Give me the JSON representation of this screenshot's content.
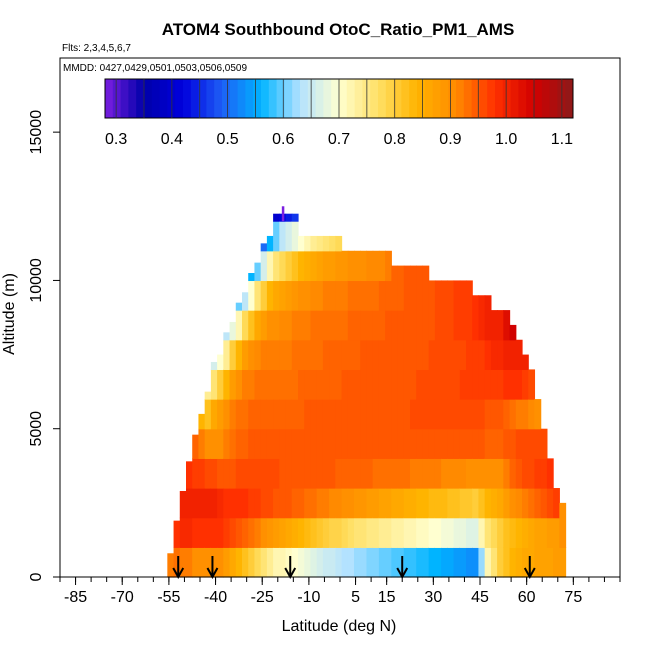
{
  "chart_data": {
    "type": "heatmap",
    "title": "ATOM4 Southbound OtoC_Ratio_PM1_AMS",
    "subtitle": "Flts: 2,3,4,5,6,7",
    "annotation": "MMDD: 0427,0429,0501,0503,0506,0509",
    "xlabel": "Latitude (deg N)",
    "ylabel": "Altitude (m)",
    "xlim": [
      -90,
      90
    ],
    "ylim": [
      0,
      17500
    ],
    "x_ticks": [
      -85,
      -70,
      -55,
      -40,
      -25,
      -10,
      5,
      15,
      30,
      45,
      60,
      75
    ],
    "x_ticklabels": [
      "-85",
      "-70",
      "-55",
      "-40",
      "-25",
      "-10",
      "5",
      "15",
      "30",
      "45",
      "60",
      "75"
    ],
    "x_minor_step": 5,
    "y_ticks": [
      0,
      5000,
      10000,
      15000
    ],
    "y_ticklabels": [
      "0",
      "5000",
      "10000",
      "15000"
    ],
    "colorbar": {
      "ticks": [
        0.3,
        0.4,
        0.5,
        0.6,
        0.7,
        0.8,
        0.9,
        1.0,
        1.1
      ],
      "ticklabels": [
        "0.3",
        "0.4",
        "0.5",
        "0.6",
        "0.7",
        "0.8",
        "0.9",
        "1.0",
        "1.1"
      ],
      "range": [
        0.28,
        1.12
      ],
      "colors": [
        "#7b1fe0",
        "#0000aa",
        "#0000dd",
        "#1e5ef5",
        "#00b4ff",
        "#b3e2ff",
        "#ffffd0",
        "#ffe066",
        "#ffb400",
        "#ff8a00",
        "#ff3000",
        "#d10000",
        "#8c1a1a"
      ]
    },
    "profile_arrows_lat": [
      -52,
      -41,
      -16,
      20,
      61
    ],
    "columns": [
      {
        "lat": -54.5,
        "top": 800,
        "values": [
          0.92
        ]
      },
      {
        "lat": -52.5,
        "top": 1900,
        "values": [
          0.93,
          0.98
        ]
      },
      {
        "lat": -50.5,
        "top": 2900,
        "values": [
          0.92,
          0.99,
          1.0
        ]
      },
      {
        "lat": -48.5,
        "top": 3900,
        "values": [
          0.92,
          0.99,
          1.0,
          0.98
        ]
      },
      {
        "lat": -46.5,
        "top": 4800,
        "values": [
          0.9,
          0.98,
          1.0,
          0.97,
          0.94
        ]
      },
      {
        "lat": -44.5,
        "top": 5500,
        "values": [
          0.9,
          0.98,
          1.0,
          0.97,
          0.92,
          0.84
        ]
      },
      {
        "lat": -42.5,
        "top": 6200,
        "values": [
          0.9,
          0.98,
          1.0,
          0.96,
          0.9,
          0.82,
          0.74
        ]
      },
      {
        "lat": -40.5,
        "top": 6900,
        "values": [
          0.9,
          0.98,
          1.0,
          0.96,
          0.9,
          0.86,
          0.76,
          0.66
        ]
      },
      {
        "lat": -38.5,
        "top": 7500,
        "values": [
          0.9,
          0.98,
          0.99,
          0.95,
          0.9,
          0.88,
          0.8,
          0.7
        ]
      },
      {
        "lat": -36.5,
        "top": 8000,
        "values": [
          0.88,
          0.97,
          0.98,
          0.95,
          0.92,
          0.9,
          0.84,
          0.74,
          0.64
        ]
      },
      {
        "lat": -34.5,
        "top": 8600,
        "values": [
          0.86,
          0.96,
          0.98,
          0.95,
          0.93,
          0.92,
          0.88,
          0.8,
          0.68
        ]
      },
      {
        "lat": -32.5,
        "top": 9100,
        "values": [
          0.84,
          0.95,
          0.98,
          0.96,
          0.94,
          0.93,
          0.9,
          0.84,
          0.72,
          0.6
        ]
      },
      {
        "lat": -30.5,
        "top": 9600,
        "values": [
          0.82,
          0.94,
          0.98,
          0.96,
          0.94,
          0.93,
          0.92,
          0.88,
          0.78,
          0.64
        ]
      },
      {
        "lat": -28.5,
        "top": 10100,
        "values": [
          0.8,
          0.93,
          0.97,
          0.96,
          0.95,
          0.94,
          0.92,
          0.9,
          0.82,
          0.7,
          0.56
        ]
      },
      {
        "lat": -26.5,
        "top": 10600,
        "values": [
          0.78,
          0.92,
          0.97,
          0.96,
          0.95,
          0.94,
          0.93,
          0.91,
          0.86,
          0.76,
          0.6
        ]
      },
      {
        "lat": -24.5,
        "top": 11100,
        "values": [
          0.76,
          0.9,
          0.96,
          0.96,
          0.95,
          0.94,
          0.93,
          0.92,
          0.88,
          0.8,
          0.66,
          0.5
        ]
      },
      {
        "lat": -22.5,
        "top": 11500,
        "values": [
          0.74,
          0.89,
          0.96,
          0.96,
          0.95,
          0.94,
          0.93,
          0.92,
          0.9,
          0.84,
          0.72,
          0.56
        ]
      },
      {
        "lat": -20.5,
        "top": 12000,
        "values": [
          0.72,
          0.88,
          0.95,
          0.96,
          0.95,
          0.94,
          0.93,
          0.92,
          0.9,
          0.86,
          0.76,
          0.6,
          0.4
        ]
      },
      {
        "lat": -18.5,
        "top": 12000,
        "values": [
          0.72,
          0.87,
          0.95,
          0.95,
          0.95,
          0.94,
          0.93,
          0.92,
          0.91,
          0.87,
          0.78,
          0.64,
          0.42
        ]
      },
      {
        "lat": -16.5,
        "top": 12000,
        "values": [
          0.71,
          0.86,
          0.95,
          0.95,
          0.95,
          0.94,
          0.93,
          0.92,
          0.91,
          0.88,
          0.8,
          0.66,
          0.44
        ]
      },
      {
        "lat": -14.5,
        "top": 12000,
        "values": [
          0.7,
          0.85,
          0.94,
          0.95,
          0.95,
          0.94,
          0.93,
          0.93,
          0.92,
          0.89,
          0.82,
          0.68,
          0.46
        ]
      },
      {
        "lat": -12.5,
        "top": 11500,
        "values": [
          0.69,
          0.84,
          0.94,
          0.95,
          0.95,
          0.94,
          0.94,
          0.93,
          0.92,
          0.9,
          0.84,
          0.7
        ]
      },
      {
        "lat": -10.5,
        "top": 11500,
        "values": [
          0.68,
          0.83,
          0.93,
          0.95,
          0.95,
          0.95,
          0.94,
          0.93,
          0.92,
          0.9,
          0.85,
          0.72
        ]
      },
      {
        "lat": -8.5,
        "top": 11500,
        "values": [
          0.67,
          0.82,
          0.93,
          0.95,
          0.95,
          0.95,
          0.94,
          0.93,
          0.93,
          0.91,
          0.86,
          0.74
        ]
      },
      {
        "lat": -6.5,
        "top": 11500,
        "values": [
          0.66,
          0.81,
          0.92,
          0.95,
          0.95,
          0.95,
          0.94,
          0.93,
          0.93,
          0.91,
          0.87,
          0.75
        ]
      },
      {
        "lat": -4.5,
        "top": 11500,
        "values": [
          0.65,
          0.8,
          0.92,
          0.95,
          0.95,
          0.95,
          0.94,
          0.94,
          0.93,
          0.92,
          0.88,
          0.76
        ]
      },
      {
        "lat": -2.5,
        "top": 11500,
        "values": [
          0.65,
          0.79,
          0.91,
          0.95,
          0.95,
          0.95,
          0.94,
          0.94,
          0.93,
          0.92,
          0.88,
          0.77
        ]
      },
      {
        "lat": -0.5,
        "top": 11500,
        "values": [
          0.64,
          0.79,
          0.91,
          0.94,
          0.95,
          0.95,
          0.94,
          0.94,
          0.93,
          0.92,
          0.89,
          0.78
        ]
      },
      {
        "lat": 1.5,
        "top": 11000,
        "values": [
          0.63,
          0.78,
          0.9,
          0.94,
          0.95,
          0.95,
          0.95,
          0.94,
          0.93,
          0.92,
          0.89
        ]
      },
      {
        "lat": 3.5,
        "top": 11000,
        "values": [
          0.63,
          0.77,
          0.9,
          0.94,
          0.95,
          0.95,
          0.95,
          0.94,
          0.94,
          0.93,
          0.9
        ]
      },
      {
        "lat": 5.5,
        "top": 11000,
        "values": [
          0.62,
          0.76,
          0.89,
          0.94,
          0.95,
          0.95,
          0.95,
          0.94,
          0.94,
          0.93,
          0.9
        ]
      },
      {
        "lat": 7.5,
        "top": 11000,
        "values": [
          0.62,
          0.76,
          0.89,
          0.94,
          0.95,
          0.95,
          0.95,
          0.95,
          0.94,
          0.93,
          0.9
        ]
      },
      {
        "lat": 9.5,
        "top": 11000,
        "values": [
          0.61,
          0.75,
          0.88,
          0.94,
          0.95,
          0.95,
          0.95,
          0.95,
          0.94,
          0.93,
          0.91
        ]
      },
      {
        "lat": 11.5,
        "top": 11000,
        "values": [
          0.61,
          0.75,
          0.88,
          0.93,
          0.95,
          0.95,
          0.95,
          0.95,
          0.94,
          0.93,
          0.91
        ]
      },
      {
        "lat": 13.5,
        "top": 11000,
        "values": [
          0.6,
          0.74,
          0.87,
          0.93,
          0.95,
          0.95,
          0.95,
          0.95,
          0.94,
          0.94,
          0.91
        ]
      },
      {
        "lat": 15.5,
        "top": 11000,
        "values": [
          0.6,
          0.74,
          0.87,
          0.93,
          0.95,
          0.95,
          0.95,
          0.95,
          0.95,
          0.94,
          0.92
        ]
      },
      {
        "lat": 17.5,
        "top": 10500,
        "values": [
          0.59,
          0.73,
          0.86,
          0.93,
          0.95,
          0.95,
          0.95,
          0.95,
          0.95,
          0.94
        ]
      },
      {
        "lat": 19.5,
        "top": 10500,
        "values": [
          0.59,
          0.73,
          0.86,
          0.93,
          0.95,
          0.95,
          0.95,
          0.95,
          0.95,
          0.94
        ]
      },
      {
        "lat": 21.5,
        "top": 10500,
        "values": [
          0.58,
          0.72,
          0.85,
          0.93,
          0.95,
          0.95,
          0.95,
          0.95,
          0.95,
          0.95
        ]
      },
      {
        "lat": 23.5,
        "top": 10500,
        "values": [
          0.58,
          0.72,
          0.85,
          0.92,
          0.95,
          0.96,
          0.95,
          0.95,
          0.95,
          0.95
        ]
      },
      {
        "lat": 25.5,
        "top": 10500,
        "values": [
          0.57,
          0.71,
          0.84,
          0.92,
          0.95,
          0.96,
          0.96,
          0.95,
          0.95,
          0.95
        ]
      },
      {
        "lat": 27.5,
        "top": 10500,
        "values": [
          0.57,
          0.71,
          0.84,
          0.92,
          0.95,
          0.96,
          0.96,
          0.95,
          0.95,
          0.95
        ]
      },
      {
        "lat": 29.5,
        "top": 10000,
        "values": [
          0.56,
          0.7,
          0.83,
          0.92,
          0.95,
          0.96,
          0.96,
          0.96,
          0.95
        ]
      },
      {
        "lat": 31.5,
        "top": 10000,
        "values": [
          0.56,
          0.7,
          0.83,
          0.92,
          0.95,
          0.96,
          0.96,
          0.96,
          0.96
        ]
      },
      {
        "lat": 33.5,
        "top": 10000,
        "values": [
          0.55,
          0.69,
          0.83,
          0.91,
          0.95,
          0.96,
          0.96,
          0.96,
          0.96
        ]
      },
      {
        "lat": 35.5,
        "top": 10000,
        "values": [
          0.55,
          0.69,
          0.82,
          0.91,
          0.95,
          0.96,
          0.96,
          0.96,
          0.96
        ]
      },
      {
        "lat": 37.5,
        "top": 10000,
        "values": [
          0.54,
          0.68,
          0.82,
          0.91,
          0.95,
          0.96,
          0.96,
          0.96,
          0.97
        ]
      },
      {
        "lat": 39.5,
        "top": 10000,
        "values": [
          0.54,
          0.68,
          0.81,
          0.91,
          0.95,
          0.96,
          0.97,
          0.96,
          0.97
        ]
      },
      {
        "lat": 41.5,
        "top": 10000,
        "values": [
          0.53,
          0.67,
          0.81,
          0.9,
          0.95,
          0.96,
          0.97,
          0.97,
          0.97
        ]
      },
      {
        "lat": 43.5,
        "top": 9500,
        "values": [
          0.53,
          0.67,
          0.8,
          0.9,
          0.95,
          0.96,
          0.97,
          0.97,
          0.98
        ]
      },
      {
        "lat": 45.5,
        "top": 9500,
        "values": [
          0.62,
          0.72,
          0.82,
          0.9,
          0.95,
          0.96,
          0.97,
          0.97,
          0.99
        ]
      },
      {
        "lat": 47.5,
        "top": 9500,
        "values": [
          0.72,
          0.76,
          0.84,
          0.9,
          0.94,
          0.95,
          0.97,
          0.98,
          1.0
        ]
      },
      {
        "lat": 49.5,
        "top": 9000,
        "values": [
          0.76,
          0.78,
          0.85,
          0.9,
          0.94,
          0.95,
          0.97,
          0.99,
          1.0
        ]
      },
      {
        "lat": 51.5,
        "top": 9000,
        "values": [
          0.8,
          0.8,
          0.86,
          0.9,
          0.94,
          0.95,
          0.97,
          0.99,
          1.0
        ]
      },
      {
        "lat": 53.5,
        "top": 9000,
        "values": [
          0.82,
          0.82,
          0.88,
          0.92,
          0.95,
          0.94,
          0.98,
          1.0,
          1.03
        ]
      },
      {
        "lat": 55.5,
        "top": 8500,
        "values": [
          0.84,
          0.83,
          0.9,
          0.94,
          0.95,
          0.93,
          0.98,
          1.0,
          1.05
        ]
      },
      {
        "lat": 57.5,
        "top": 8000,
        "values": [
          0.85,
          0.84,
          0.91,
          0.95,
          0.96,
          0.92,
          0.98,
          1.0
        ]
      },
      {
        "lat": 59.5,
        "top": 7500,
        "values": [
          0.86,
          0.85,
          0.92,
          0.96,
          0.96,
          0.92,
          0.97,
          1.0
        ]
      },
      {
        "lat": 61.5,
        "top": 7000,
        "values": [
          0.86,
          0.86,
          0.93,
          0.96,
          0.96,
          0.91,
          0.96
        ]
      },
      {
        "lat": 63.5,
        "top": 6000,
        "values": [
          0.87,
          0.87,
          0.94,
          0.97,
          0.96,
          0.9
        ]
      },
      {
        "lat": 65.5,
        "top": 5000,
        "values": [
          0.87,
          0.87,
          0.95,
          0.97,
          0.96
        ]
      },
      {
        "lat": 67.5,
        "top": 4000,
        "values": [
          0.87,
          0.88,
          0.96,
          0.98
        ]
      },
      {
        "lat": 69.5,
        "top": 3000,
        "values": [
          0.88,
          0.88,
          0.97
        ]
      },
      {
        "lat": 71.5,
        "top": 2500,
        "values": [
          0.88,
          0.9
        ]
      }
    ]
  }
}
